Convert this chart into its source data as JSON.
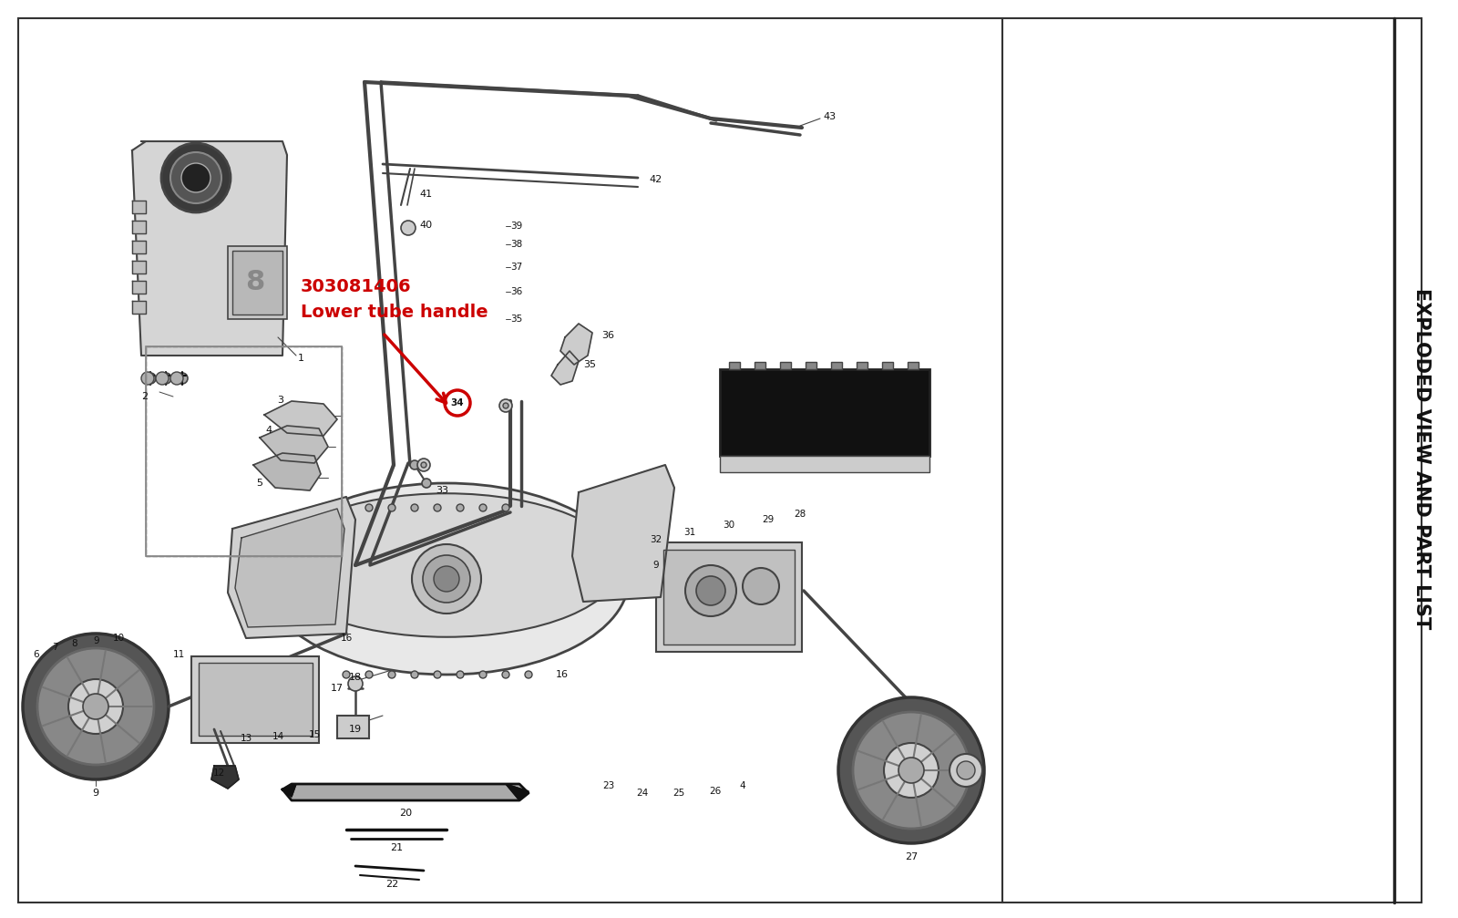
{
  "bg_color": "#ffffff",
  "page_bg": "#ffffff",
  "sidebar_bg": "#ffffff",
  "border_color": "#000000",
  "title_text": "EXPLODED VIEW AND PART LIST",
  "part_number": "303081406",
  "part_name": "Lower tube handle",
  "part_number_color": "#cc0000",
  "part_name_color": "#cc0000",
  "fig_width": 16.0,
  "fig_height": 10.07,
  "arrow_color": "#cc0000",
  "line_color": "#444444",
  "dark_color": "#111111",
  "gray_color": "#888888",
  "light_gray": "#cccccc",
  "mid_gray": "#aaaaaa",
  "dark_gray": "#555555"
}
